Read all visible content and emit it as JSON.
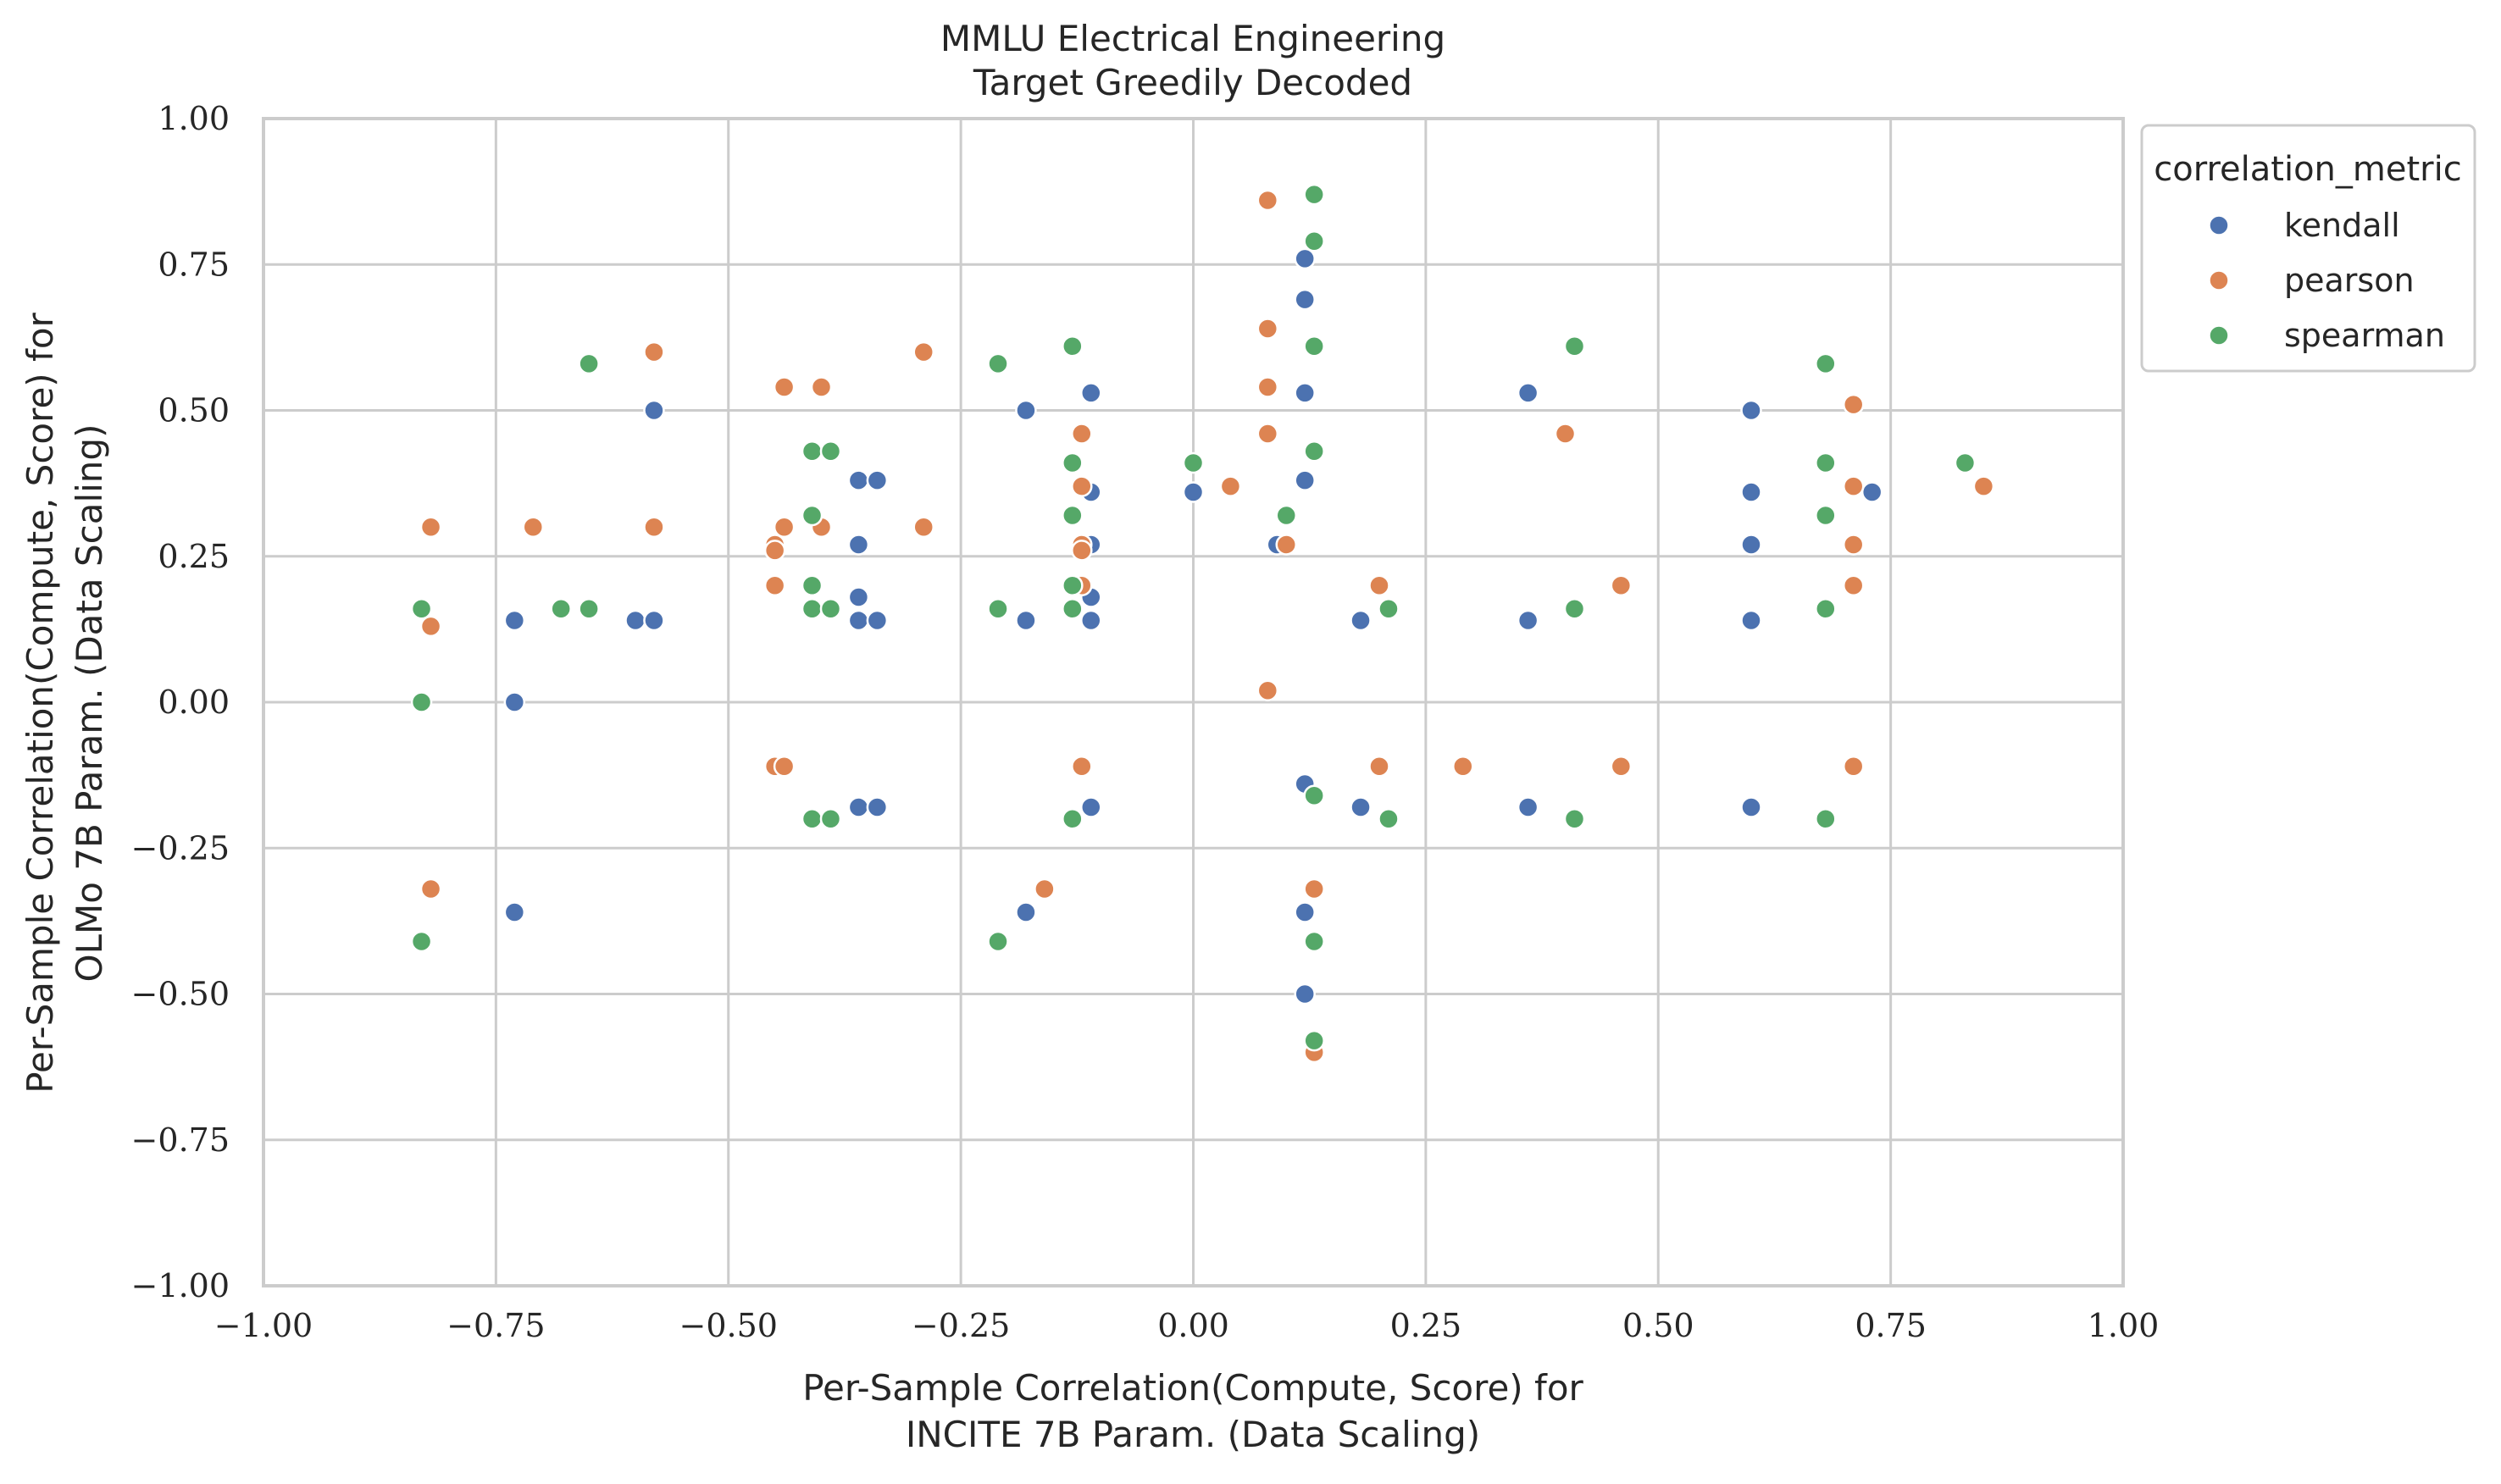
{
  "chart_data": {
    "type": "scatter",
    "title_line1": "MMLU Electrical Engineering",
    "title_line2": "Target Greedily Decoded",
    "xlabel_line1": "Per-Sample Correlation(Compute, Score) for",
    "xlabel_line2": "INCITE 7B Param. (Data Scaling)",
    "ylabel_line1": "Per-Sample Correlation(Compute, Score) for",
    "ylabel_line2": "OLMo 7B Param. (Data Scaling)",
    "xlim": [
      -1.0,
      1.0
    ],
    "ylim": [
      -1.0,
      1.0
    ],
    "xticks": [
      -1.0,
      -0.75,
      -0.5,
      -0.25,
      0.0,
      0.25,
      0.5,
      0.75,
      1.0
    ],
    "yticks": [
      -1.0,
      -0.75,
      -0.5,
      -0.25,
      0.0,
      0.25,
      0.5,
      0.75,
      1.0
    ],
    "xtick_labels": [
      "−1.00",
      "−0.75",
      "−0.50",
      "−0.25",
      "0.00",
      "0.25",
      "0.50",
      "0.75",
      "1.00"
    ],
    "ytick_labels": [
      "−1.00",
      "−0.75",
      "−0.50",
      "−0.25",
      "0.00",
      "0.25",
      "0.50",
      "0.75",
      "1.00"
    ],
    "grid": true,
    "legend": {
      "title": "correlation_metric",
      "placement": "outside-right-top"
    },
    "series": [
      {
        "name": "kendall",
        "color": "#4c72b0",
        "points": [
          [
            -0.73,
            0.14
          ],
          [
            -0.73,
            0.0
          ],
          [
            -0.73,
            -0.36
          ],
          [
            -0.6,
            0.14
          ],
          [
            -0.58,
            0.14
          ],
          [
            -0.58,
            0.5
          ],
          [
            -0.36,
            0.38
          ],
          [
            -0.34,
            0.38
          ],
          [
            -0.36,
            0.27
          ],
          [
            -0.36,
            0.18
          ],
          [
            -0.36,
            0.14
          ],
          [
            -0.34,
            0.14
          ],
          [
            -0.36,
            -0.18
          ],
          [
            -0.34,
            -0.18
          ],
          [
            -0.18,
            0.5
          ],
          [
            -0.18,
            0.14
          ],
          [
            -0.18,
            -0.36
          ],
          [
            -0.11,
            0.53
          ],
          [
            -0.11,
            0.36
          ],
          [
            -0.11,
            0.27
          ],
          [
            -0.11,
            0.18
          ],
          [
            -0.11,
            0.14
          ],
          [
            -0.11,
            -0.18
          ],
          [
            0.0,
            0.36
          ],
          [
            0.09,
            0.27
          ],
          [
            0.12,
            0.76
          ],
          [
            0.12,
            0.69
          ],
          [
            0.12,
            0.53
          ],
          [
            0.12,
            0.38
          ],
          [
            0.12,
            -0.14
          ],
          [
            0.12,
            -0.36
          ],
          [
            0.12,
            -0.5
          ],
          [
            0.18,
            0.14
          ],
          [
            0.18,
            -0.18
          ],
          [
            0.36,
            0.53
          ],
          [
            0.36,
            0.14
          ],
          [
            0.36,
            -0.18
          ],
          [
            0.6,
            0.5
          ],
          [
            0.6,
            0.36
          ],
          [
            0.6,
            0.27
          ],
          [
            0.6,
            0.14
          ],
          [
            0.6,
            -0.18
          ],
          [
            0.73,
            0.36
          ]
        ]
      },
      {
        "name": "pearson",
        "color": "#dd8452",
        "points": [
          [
            -0.82,
            0.3
          ],
          [
            -0.82,
            0.13
          ],
          [
            -0.82,
            -0.32
          ],
          [
            -0.71,
            0.3
          ],
          [
            -0.58,
            0.6
          ],
          [
            -0.58,
            0.3
          ],
          [
            -0.44,
            0.54
          ],
          [
            -0.4,
            0.54
          ],
          [
            -0.44,
            0.3
          ],
          [
            -0.4,
            0.3
          ],
          [
            -0.45,
            0.27
          ],
          [
            -0.45,
            0.26
          ],
          [
            -0.45,
            0.2
          ],
          [
            -0.45,
            -0.11
          ],
          [
            -0.44,
            -0.11
          ],
          [
            -0.29,
            0.6
          ],
          [
            -0.29,
            0.3
          ],
          [
            -0.16,
            -0.32
          ],
          [
            -0.12,
            0.46
          ],
          [
            -0.12,
            0.37
          ],
          [
            -0.12,
            0.27
          ],
          [
            -0.12,
            0.26
          ],
          [
            -0.12,
            0.2
          ],
          [
            -0.12,
            -0.11
          ],
          [
            0.04,
            0.37
          ],
          [
            0.08,
            0.86
          ],
          [
            0.08,
            0.64
          ],
          [
            0.08,
            0.54
          ],
          [
            0.08,
            0.46
          ],
          [
            0.08,
            0.02
          ],
          [
            0.1,
            0.27
          ],
          [
            0.13,
            -0.32
          ],
          [
            0.13,
            -0.6
          ],
          [
            0.2,
            0.2
          ],
          [
            0.2,
            -0.11
          ],
          [
            0.29,
            -0.11
          ],
          [
            0.4,
            0.46
          ],
          [
            0.46,
            0.2
          ],
          [
            0.46,
            -0.11
          ],
          [
            0.71,
            0.51
          ],
          [
            0.71,
            0.37
          ],
          [
            0.71,
            0.27
          ],
          [
            0.71,
            0.2
          ],
          [
            0.71,
            -0.11
          ],
          [
            0.85,
            0.37
          ]
        ]
      },
      {
        "name": "spearman",
        "color": "#55a868",
        "points": [
          [
            -0.83,
            0.16
          ],
          [
            -0.83,
            0.0
          ],
          [
            -0.83,
            -0.41
          ],
          [
            -0.68,
            0.16
          ],
          [
            -0.65,
            0.16
          ],
          [
            -0.65,
            0.58
          ],
          [
            -0.41,
            0.43
          ],
          [
            -0.39,
            0.43
          ],
          [
            -0.41,
            0.32
          ],
          [
            -0.41,
            0.2
          ],
          [
            -0.41,
            0.16
          ],
          [
            -0.39,
            0.16
          ],
          [
            -0.41,
            -0.2
          ],
          [
            -0.39,
            -0.2
          ],
          [
            -0.21,
            0.58
          ],
          [
            -0.21,
            0.16
          ],
          [
            -0.21,
            -0.41
          ],
          [
            -0.13,
            0.61
          ],
          [
            -0.13,
            0.41
          ],
          [
            -0.13,
            0.32
          ],
          [
            -0.13,
            0.2
          ],
          [
            -0.13,
            0.16
          ],
          [
            -0.13,
            -0.2
          ],
          [
            0.0,
            0.41
          ],
          [
            0.1,
            0.32
          ],
          [
            0.13,
            0.87
          ],
          [
            0.13,
            0.79
          ],
          [
            0.13,
            0.61
          ],
          [
            0.13,
            0.43
          ],
          [
            0.13,
            -0.16
          ],
          [
            0.13,
            -0.41
          ],
          [
            0.13,
            -0.58
          ],
          [
            0.21,
            0.16
          ],
          [
            0.21,
            -0.2
          ],
          [
            0.41,
            0.61
          ],
          [
            0.41,
            0.16
          ],
          [
            0.41,
            -0.2
          ],
          [
            0.68,
            0.58
          ],
          [
            0.68,
            0.41
          ],
          [
            0.68,
            0.32
          ],
          [
            0.68,
            0.16
          ],
          [
            0.68,
            -0.2
          ],
          [
            0.83,
            0.41
          ]
        ]
      }
    ]
  }
}
